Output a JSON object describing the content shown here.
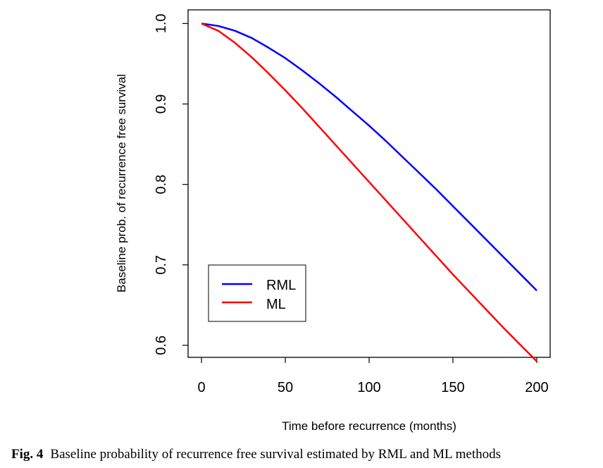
{
  "chart_data": {
    "type": "line",
    "xlabel": "Time before recurrence (months)",
    "ylabel": "Baseline prob. of recurrence free survival",
    "xlim": [
      -8,
      208
    ],
    "ylim": [
      0.585,
      1.017
    ],
    "x_ticks": [
      0,
      50,
      100,
      150,
      200
    ],
    "y_ticks": [
      0.6,
      0.7,
      0.8,
      0.9,
      1.0
    ],
    "x_tick_labels": [
      "0",
      "50",
      "100",
      "150",
      "200"
    ],
    "y_tick_labels": [
      "0.6",
      "0.7",
      "0.8",
      "0.9",
      "1.0"
    ],
    "grid": false,
    "legend_position": "bottom-left",
    "series": [
      {
        "name": "RML",
        "color": "#0000ff",
        "x": [
          0,
          10,
          20,
          30,
          40,
          50,
          60,
          70,
          80,
          90,
          100,
          110,
          120,
          130,
          140,
          150,
          160,
          170,
          180,
          190,
          200
        ],
        "y": [
          1.0,
          0.997,
          0.991,
          0.982,
          0.97,
          0.957,
          0.942,
          0.926,
          0.909,
          0.891,
          0.873,
          0.854,
          0.834,
          0.814,
          0.794,
          0.773,
          0.752,
          0.731,
          0.71,
          0.689,
          0.668
        ]
      },
      {
        "name": "ML",
        "color": "#ff0000",
        "x": [
          0,
          10,
          20,
          30,
          40,
          50,
          60,
          70,
          80,
          90,
          100,
          110,
          120,
          130,
          140,
          150,
          160,
          170,
          180,
          190,
          200
        ],
        "y": [
          1.0,
          0.991,
          0.976,
          0.958,
          0.938,
          0.917,
          0.895,
          0.872,
          0.849,
          0.826,
          0.803,
          0.78,
          0.757,
          0.734,
          0.711,
          0.688,
          0.666,
          0.644,
          0.622,
          0.601,
          0.58
        ]
      }
    ]
  },
  "caption": {
    "label": "Fig. 4",
    "text": "Baseline probability of recurrence free survival estimated by RML and ML methods"
  }
}
